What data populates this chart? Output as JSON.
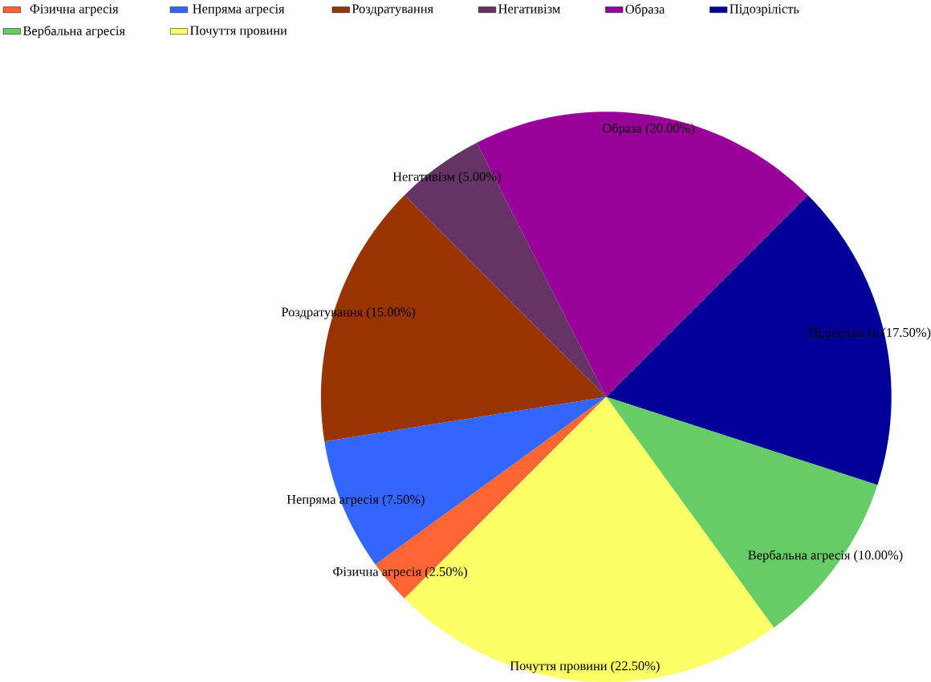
{
  "chart_data": {
    "type": "pie",
    "categories": [
      "Фізична агресія",
      "Непряма агресія",
      "Роздратування",
      "Негативізм",
      "Образа",
      "Підозрілість",
      "Вербальна агресія",
      "Почуття провини"
    ],
    "values": [
      2.5,
      7.5,
      15,
      5,
      20,
      17.5,
      10,
      22.5
    ],
    "colors": [
      "#ff6633",
      "#3366ff",
      "#993300",
      "#663366",
      "#990099",
      "#000099",
      "#66cc66",
      "#ffff66"
    ],
    "value_labels": [
      "(2.50%)",
      "(7.50%)",
      "(15.00%)",
      "(5.00%)",
      "(20.00%)",
      "(17.50%)",
      "(10.00%)",
      "(22.50%)"
    ],
    "legend": "top left"
  }
}
